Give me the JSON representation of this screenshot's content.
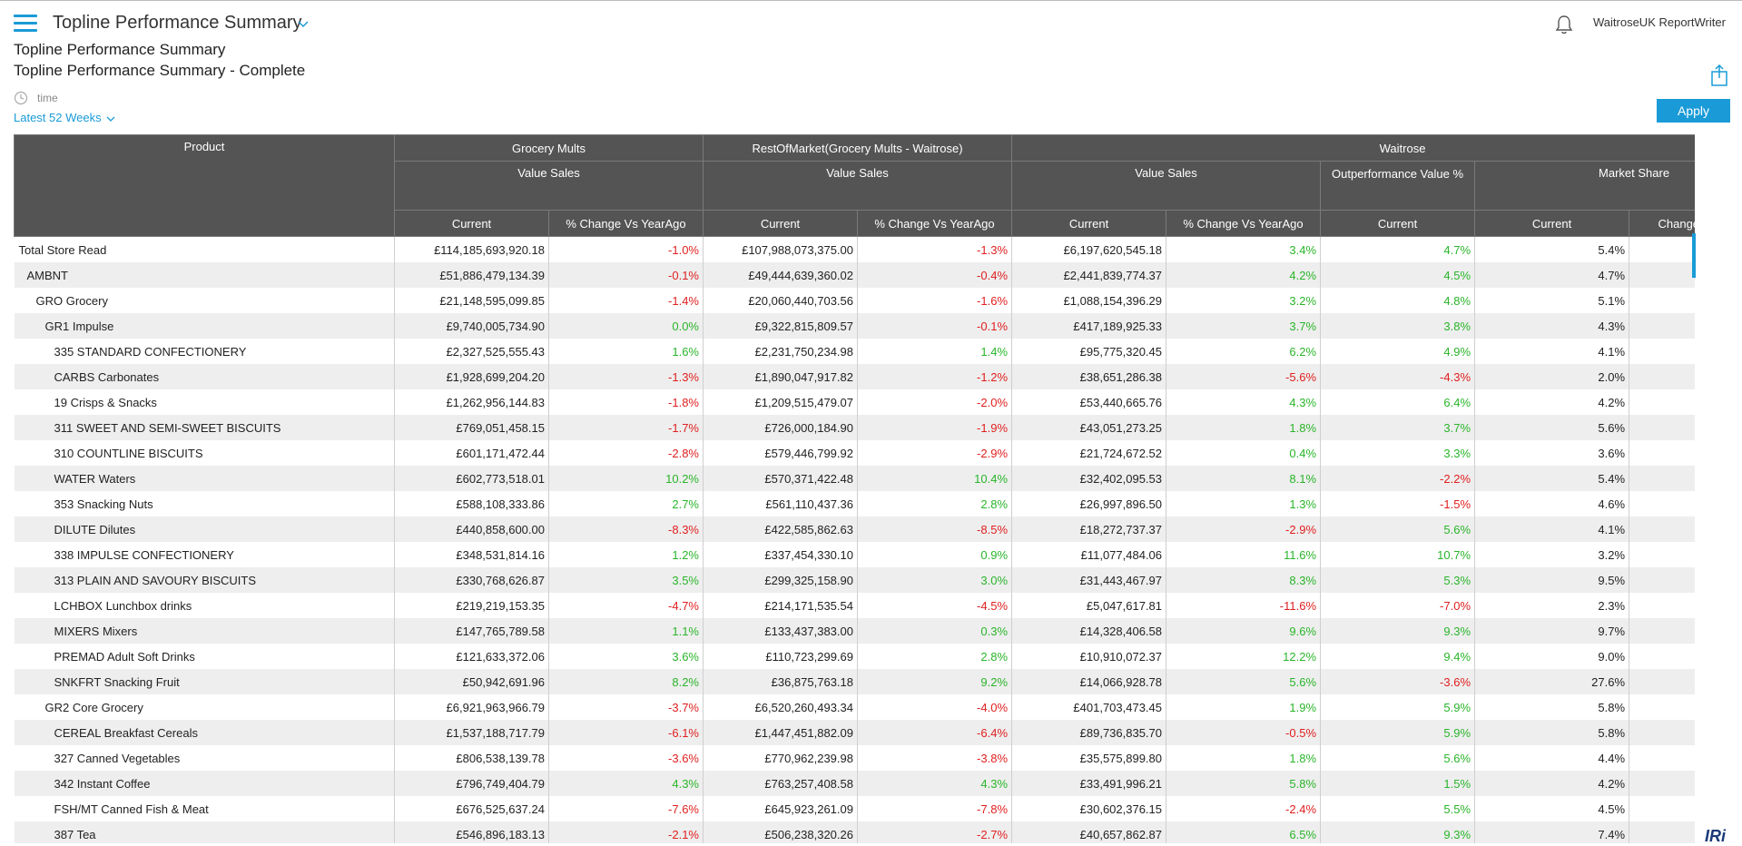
{
  "app": {
    "title": "Topline Performance Summary",
    "user": "WaitroseUK ReportWriter"
  },
  "report": {
    "title": "Topline Performance Summary",
    "subtitle": "Topline Performance Summary - Complete"
  },
  "filter": {
    "label": "time",
    "value": "Latest 52 Weeks",
    "apply_label": "Apply"
  },
  "brand": {
    "logo_text": "IRi"
  },
  "table": {
    "header_row1": [
      "Product",
      "Grocery Mults",
      "RestOfMarket(Grocery Mults - Waitrose)",
      "Waitrose"
    ],
    "header_row2": [
      "Value Sales",
      "Value Sales",
      "Value Sales",
      "Outperformance Value %",
      "Market Share"
    ],
    "header_row3": [
      "Current",
      "% Change Vs YearAgo",
      "Current",
      "% Change Vs YearAgo",
      "Current",
      "% Change Vs YearAgo",
      "Current",
      "Current",
      "Change Vs YearAgo"
    ],
    "rows": [
      {
        "product": "Total Store Read",
        "level": 0,
        "values": [
          "£114,185,693,920.18",
          "-1.0%",
          "£107,988,073,375.00",
          "-1.3%",
          "£6,197,620,545.18",
          "3.4%",
          "4.7%",
          "5.4%",
          ""
        ]
      },
      {
        "product": "AMBNT",
        "level": 1,
        "values": [
          "£51,886,479,134.39",
          "-0.1%",
          "£49,444,639,360.02",
          "-0.4%",
          "£2,441,839,774.37",
          "4.2%",
          "4.5%",
          "4.7%",
          ""
        ]
      },
      {
        "product": "GRO Grocery",
        "level": 2,
        "values": [
          "£21,148,595,099.85",
          "-1.4%",
          "£20,060,440,703.56",
          "-1.6%",
          "£1,088,154,396.29",
          "3.2%",
          "4.8%",
          "5.1%",
          ""
        ]
      },
      {
        "product": "GR1 Impulse",
        "level": 3,
        "values": [
          "£9,740,005,734.90",
          "0.0%",
          "£9,322,815,809.57",
          "-0.1%",
          "£417,189,925.33",
          "3.7%",
          "3.8%",
          "4.3%",
          ""
        ]
      },
      {
        "product": "335 STANDARD CONFECTIONERY",
        "level": 4,
        "values": [
          "£2,327,525,555.43",
          "1.6%",
          "£2,231,750,234.98",
          "1.4%",
          "£95,775,320.45",
          "6.2%",
          "4.9%",
          "4.1%",
          ""
        ]
      },
      {
        "product": "CARBS Carbonates",
        "level": 4,
        "values": [
          "£1,928,699,204.20",
          "-1.3%",
          "£1,890,047,917.82",
          "-1.2%",
          "£38,651,286.38",
          "-5.6%",
          "-4.3%",
          "2.0%",
          ""
        ]
      },
      {
        "product": "19 Crisps & Snacks",
        "level": 4,
        "values": [
          "£1,262,956,144.83",
          "-1.8%",
          "£1,209,515,479.07",
          "-2.0%",
          "£53,440,665.76",
          "4.3%",
          "6.4%",
          "4.2%",
          ""
        ]
      },
      {
        "product": "311 SWEET AND SEMI-SWEET BISCUITS",
        "level": 4,
        "values": [
          "£769,051,458.15",
          "-1.7%",
          "£726,000,184.90",
          "-1.9%",
          "£43,051,273.25",
          "1.8%",
          "3.7%",
          "5.6%",
          ""
        ]
      },
      {
        "product": "310 COUNTLINE BISCUITS",
        "level": 4,
        "values": [
          "£601,171,472.44",
          "-2.8%",
          "£579,446,799.92",
          "-2.9%",
          "£21,724,672.52",
          "0.4%",
          "3.3%",
          "3.6%",
          ""
        ]
      },
      {
        "product": "WATER Waters",
        "level": 4,
        "values": [
          "£602,773,518.01",
          "10.2%",
          "£570,371,422.48",
          "10.4%",
          "£32,402,095.53",
          "8.1%",
          "-2.2%",
          "5.4%",
          ""
        ]
      },
      {
        "product": "353 Snacking Nuts",
        "level": 4,
        "values": [
          "£588,108,333.86",
          "2.7%",
          "£561,110,437.36",
          "2.8%",
          "£26,997,896.50",
          "1.3%",
          "-1.5%",
          "4.6%",
          ""
        ]
      },
      {
        "product": "DILUTE Dilutes",
        "level": 4,
        "values": [
          "£440,858,600.00",
          "-8.3%",
          "£422,585,862.63",
          "-8.5%",
          "£18,272,737.37",
          "-2.9%",
          "5.6%",
          "4.1%",
          ""
        ]
      },
      {
        "product": "338 IMPULSE CONFECTIONERY",
        "level": 4,
        "values": [
          "£348,531,814.16",
          "1.2%",
          "£337,454,330.10",
          "0.9%",
          "£11,077,484.06",
          "11.6%",
          "10.7%",
          "3.2%",
          ""
        ]
      },
      {
        "product": "313 PLAIN AND SAVOURY BISCUITS",
        "level": 4,
        "values": [
          "£330,768,626.87",
          "3.5%",
          "£299,325,158.90",
          "3.0%",
          "£31,443,467.97",
          "8.3%",
          "5.3%",
          "9.5%",
          ""
        ]
      },
      {
        "product": "LCHBOX Lunchbox drinks",
        "level": 4,
        "values": [
          "£219,219,153.35",
          "-4.7%",
          "£214,171,535.54",
          "-4.5%",
          "£5,047,617.81",
          "-11.6%",
          "-7.0%",
          "2.3%",
          ""
        ]
      },
      {
        "product": "MIXERS Mixers",
        "level": 4,
        "values": [
          "£147,765,789.58",
          "1.1%",
          "£133,437,383.00",
          "0.3%",
          "£14,328,406.58",
          "9.6%",
          "9.3%",
          "9.7%",
          ""
        ]
      },
      {
        "product": "PREMAD Adult Soft Drinks",
        "level": 4,
        "values": [
          "£121,633,372.06",
          "3.6%",
          "£110,723,299.69",
          "2.8%",
          "£10,910,072.37",
          "12.2%",
          "9.4%",
          "9.0%",
          ""
        ]
      },
      {
        "product": "SNKFRT Snacking Fruit",
        "level": 4,
        "values": [
          "£50,942,691.96",
          "8.2%",
          "£36,875,763.18",
          "9.2%",
          "£14,066,928.78",
          "5.6%",
          "-3.6%",
          "27.6%",
          ""
        ]
      },
      {
        "product": "GR2 Core Grocery",
        "level": 3,
        "values": [
          "£6,921,963,966.79",
          "-3.7%",
          "£6,520,260,493.34",
          "-4.0%",
          "£401,703,473.45",
          "1.9%",
          "5.9%",
          "5.8%",
          ""
        ]
      },
      {
        "product": "CEREAL Breakfast Cereals",
        "level": 4,
        "values": [
          "£1,537,188,717.79",
          "-6.1%",
          "£1,447,451,882.09",
          "-6.4%",
          "£89,736,835.70",
          "-0.5%",
          "5.9%",
          "5.8%",
          ""
        ]
      },
      {
        "product": "327 Canned Vegetables",
        "level": 4,
        "values": [
          "£806,538,139.78",
          "-3.6%",
          "£770,962,239.98",
          "-3.8%",
          "£35,575,899.80",
          "1.8%",
          "5.6%",
          "4.4%",
          ""
        ]
      },
      {
        "product": "342 Instant Coffee",
        "level": 4,
        "values": [
          "£796,749,404.79",
          "4.3%",
          "£763,257,408.58",
          "4.3%",
          "£33,491,996.21",
          "5.8%",
          "1.5%",
          "4.2%",
          ""
        ]
      },
      {
        "product": "FSH/MT Canned Fish & Meat",
        "level": 4,
        "values": [
          "£676,525,637.24",
          "-7.6%",
          "£645,923,261.09",
          "-7.8%",
          "£30,602,376.15",
          "-2.4%",
          "5.5%",
          "4.5%",
          ""
        ]
      },
      {
        "product": "387 Tea",
        "level": 4,
        "values": [
          "£546,896,183.13",
          "-2.1%",
          "£506,238,320.26",
          "-2.7%",
          "£40,657,862.87",
          "6.5%",
          "9.3%",
          "7.4%",
          ""
        ]
      }
    ]
  },
  "colors": {
    "accent": "#1a9bd7",
    "header_bg": "#545454",
    "positive": "#2ab52a",
    "negative": "#e01f1f",
    "row_alt": "#eeeeee"
  },
  "icons": {
    "menu": "hamburger-menu-icon",
    "dropdown": "chevron-down-icon",
    "notifications": "bell-icon",
    "share": "share-icon",
    "time": "clock-icon"
  }
}
